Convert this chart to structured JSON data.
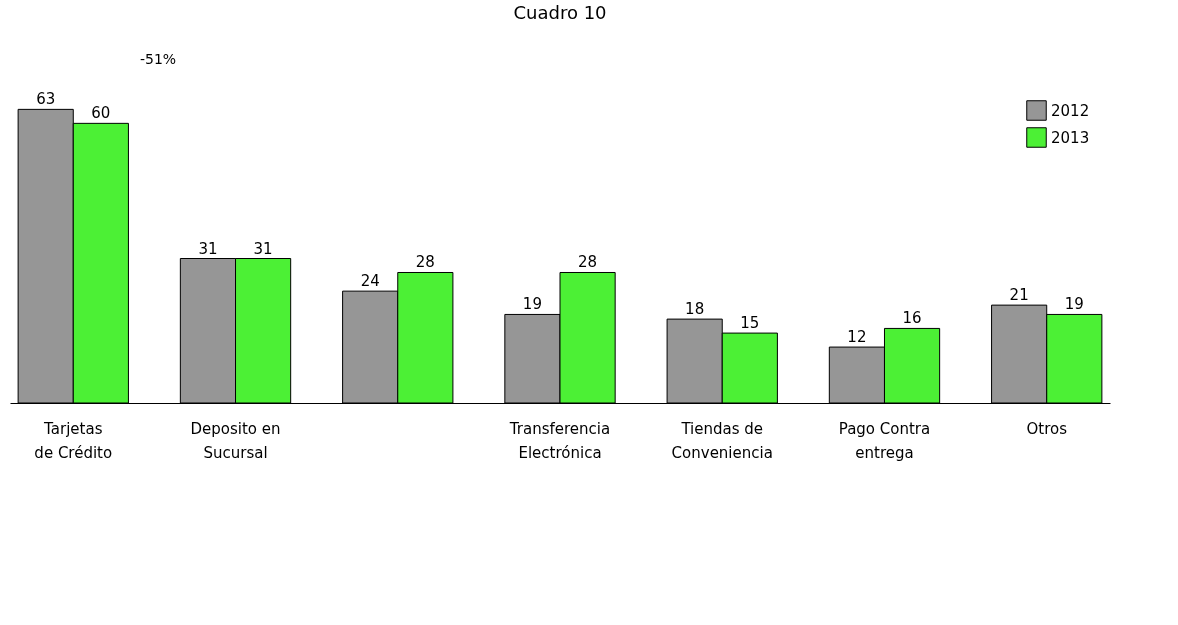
{
  "chart_data": {
    "type": "bar",
    "title": "Cuadro 10",
    "categories": [
      "Tarjetas de Crédito",
      "Deposito en Sucursal",
      null,
      "Transferencia Electrónica",
      "Tiendas de Conveniencia",
      "Pago Contra entrega",
      "Otros"
    ],
    "series": [
      {
        "name": "2012",
        "color": "#969696",
        "values": [
          63,
          31,
          24,
          19,
          18,
          12,
          21
        ]
      },
      {
        "name": "2013",
        "color": "#4cf035",
        "values": [
          60,
          31,
          28,
          28,
          15,
          16,
          19
        ]
      }
    ],
    "data_labels": true,
    "legend": "top right",
    "grid": false,
    "annotations": [
      "-51%"
    ]
  }
}
